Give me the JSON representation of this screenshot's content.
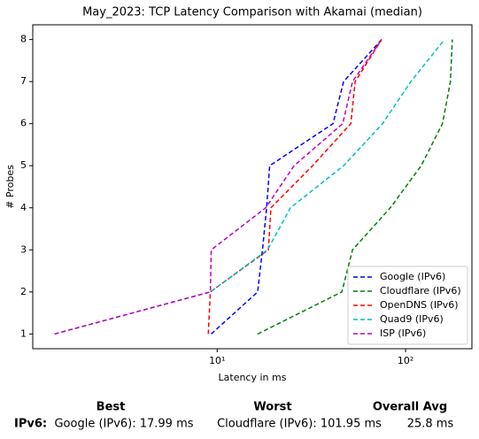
{
  "chart_data": {
    "type": "line",
    "title": "May_2023: TCP Latency Comparison with Akamai (median)",
    "xlabel": "Latency in ms",
    "ylabel": "# Probes",
    "xscale": "log",
    "xlim": [
      1.05,
      225
    ],
    "ylim": [
      0.65,
      8.35
    ],
    "xticks": [
      {
        "value": 10,
        "label": "10¹"
      },
      {
        "value": 100,
        "label": "10²"
      }
    ],
    "yticks": [
      1,
      2,
      3,
      4,
      5,
      6,
      7,
      8
    ],
    "legend": "lower right",
    "linestyle": "dashed",
    "series": [
      {
        "name": "Google (IPv6)",
        "color": "#0000ff",
        "x": [
          9.3,
          16.4,
          17.4,
          18.3,
          19.0,
          41.2,
          46.9,
          74.7
        ],
        "values": [
          1,
          2,
          3,
          4,
          5,
          6,
          7,
          8
        ]
      },
      {
        "name": "Cloudflare (IPv6)",
        "color": "#008000",
        "x": [
          16.4,
          45.9,
          52.3,
          83,
          121,
          157,
          173,
          177
        ],
        "values": [
          1,
          2,
          3,
          4,
          5,
          6,
          7,
          8
        ]
      },
      {
        "name": "OpenDNS (IPv6)",
        "color": "#ff0000",
        "x": [
          8.97,
          9.2,
          18.7,
          19.3,
          32.1,
          51.2,
          54,
          74.7
        ],
        "values": [
          1,
          2,
          3,
          4,
          5,
          6,
          7,
          8
        ]
      },
      {
        "name": "Quad9 (IPv6)",
        "color": "#00bfbf",
        "x": [
          1.37,
          9.2,
          18.5,
          24.5,
          46.9,
          75.5,
          106.7,
          161
        ],
        "values": [
          1,
          2,
          3,
          4,
          5,
          6,
          7,
          8
        ]
      },
      {
        "name": "ISP (IPv6)",
        "color": "#bf00bf",
        "x": [
          1.37,
          9.2,
          9.3,
          18.1,
          25.6,
          46.4,
          52.3,
          74.7
        ],
        "values": [
          1,
          2,
          3,
          4,
          5,
          6,
          7,
          8
        ]
      }
    ]
  },
  "table": {
    "headers": [
      "Best",
      "Worst",
      "Overall Avg"
    ],
    "rows": [
      [
        "IPv6:",
        "Google (IPv6): 17.99 ms",
        "Cloudflare (IPv6): 101.95 ms",
        "25.8 ms"
      ]
    ]
  }
}
